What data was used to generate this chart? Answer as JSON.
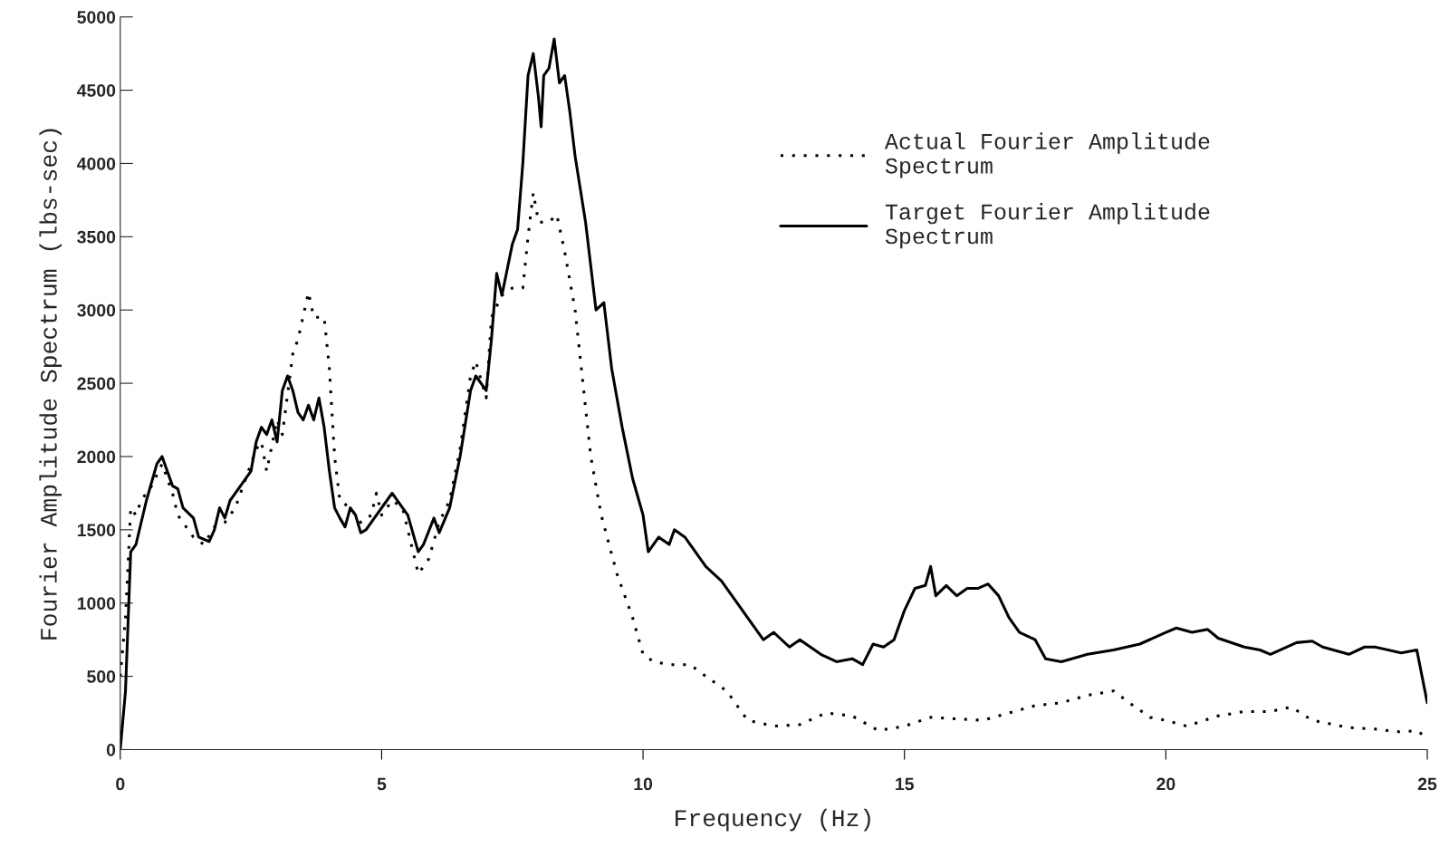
{
  "chart_data": {
    "type": "line",
    "xlabel": "Frequency (Hz)",
    "ylabel": "Fourier Amplitude Spectrum (lbs-sec)",
    "xlim": [
      0,
      25
    ],
    "xticks": [
      0,
      5,
      10,
      15,
      20,
      25
    ],
    "ylim": [
      0,
      5000
    ],
    "yticks": [
      0,
      500,
      1000,
      1500,
      2000,
      2500,
      3000,
      3500,
      4000,
      4500,
      5000
    ],
    "grid": false,
    "legend": "top right",
    "series": [
      {
        "name": "Actual Fourier Amplitude\nSpectrum",
        "color": "#000000",
        "line_style": "dotted",
        "x": [
          0,
          0.1,
          0.2,
          0.3,
          0.4,
          0.6,
          0.8,
          1.0,
          1.1,
          1.2,
          1.4,
          1.6,
          1.8,
          2.0,
          2.2,
          2.4,
          2.6,
          2.7,
          2.8,
          3.0,
          3.1,
          3.3,
          3.4,
          3.6,
          3.7,
          3.9,
          4.0,
          4.1,
          4.2,
          4.4,
          4.6,
          4.8,
          4.9,
          5.0,
          5.2,
          5.4,
          5.6,
          5.7,
          5.9,
          6.1,
          6.3,
          6.5,
          6.7,
          6.8,
          7.0,
          7.1,
          7.3,
          7.5,
          7.7,
          7.8,
          7.9,
          8.0,
          8.2,
          8.35,
          8.5,
          8.7,
          9.0,
          9.2,
          9.5,
          9.8,
          10.0,
          10.2,
          10.5,
          10.9,
          11.2,
          11.6,
          12.0,
          12.5,
          13.0,
          13.5,
          14.0,
          14.5,
          15.0,
          15.5,
          16.0,
          16.5,
          17.0,
          17.5,
          18.0,
          18.5,
          19.0,
          19.3,
          19.7,
          20.0,
          20.4,
          21.0,
          21.5,
          22.0,
          22.4,
          22.8,
          23.5,
          24.0,
          24.5,
          24.8,
          25.0
        ],
        "values": [
          500,
          900,
          1650,
          1600,
          1700,
          1800,
          1950,
          1750,
          1600,
          1550,
          1450,
          1400,
          1520,
          1550,
          1650,
          1850,
          2050,
          2100,
          1900,
          2250,
          2150,
          2700,
          2800,
          3120,
          2950,
          2950,
          2600,
          2000,
          1700,
          1650,
          1550,
          1600,
          1750,
          1600,
          1700,
          1650,
          1350,
          1200,
          1300,
          1550,
          1700,
          2050,
          2550,
          2650,
          2400,
          2950,
          3100,
          3150,
          3150,
          3500,
          3800,
          3600,
          3600,
          3650,
          3400,
          3000,
          2000,
          1600,
          1200,
          900,
          650,
          600,
          580,
          580,
          500,
          400,
          200,
          160,
          170,
          250,
          230,
          130,
          160,
          220,
          210,
          200,
          250,
          300,
          320,
          370,
          400,
          320,
          220,
          200,
          160,
          230,
          260,
          260,
          290,
          200,
          150,
          140,
          120,
          130,
          80
        ]
      },
      {
        "name": "Target Fourier Amplitude\nSpectrum",
        "color": "#000000",
        "line_style": "solid",
        "x": [
          0,
          0.1,
          0.2,
          0.3,
          0.5,
          0.7,
          0.8,
          0.9,
          1.0,
          1.1,
          1.2,
          1.4,
          1.5,
          1.7,
          1.8,
          1.9,
          2.0,
          2.1,
          2.3,
          2.5,
          2.6,
          2.7,
          2.8,
          2.9,
          3.0,
          3.1,
          3.2,
          3.3,
          3.4,
          3.5,
          3.6,
          3.7,
          3.8,
          3.9,
          4.0,
          4.1,
          4.2,
          4.3,
          4.4,
          4.5,
          4.6,
          4.7,
          4.9,
          5.1,
          5.2,
          5.4,
          5.5,
          5.7,
          5.8,
          6.0,
          6.1,
          6.3,
          6.5,
          6.7,
          6.8,
          7.0,
          7.1,
          7.2,
          7.3,
          7.5,
          7.6,
          7.7,
          7.8,
          7.9,
          8.0,
          8.05,
          8.1,
          8.2,
          8.3,
          8.4,
          8.5,
          8.6,
          8.7,
          8.9,
          9.0,
          9.1,
          9.25,
          9.4,
          9.6,
          9.8,
          10.0,
          10.1,
          10.3,
          10.5,
          10.6,
          10.8,
          11.0,
          11.2,
          11.5,
          11.8,
          12.0,
          12.3,
          12.5,
          12.8,
          13.0,
          13.4,
          13.7,
          14.0,
          14.2,
          14.4,
          14.6,
          14.8,
          15.0,
          15.2,
          15.4,
          15.5,
          15.6,
          15.8,
          16.0,
          16.2,
          16.4,
          16.6,
          16.8,
          17.0,
          17.2,
          17.5,
          17.7,
          18.0,
          18.2,
          18.5,
          19.0,
          19.5,
          20.0,
          20.2,
          20.5,
          20.8,
          21.0,
          21.5,
          21.8,
          22.0,
          22.5,
          22.8,
          23.0,
          23.5,
          23.8,
          24.0,
          24.5,
          24.8,
          25.0
        ],
        "values": [
          0,
          400,
          1350,
          1400,
          1700,
          1950,
          2000,
          1900,
          1800,
          1780,
          1650,
          1580,
          1450,
          1420,
          1500,
          1650,
          1580,
          1700,
          1800,
          1900,
          2100,
          2200,
          2150,
          2250,
          2100,
          2450,
          2550,
          2450,
          2300,
          2250,
          2350,
          2250,
          2400,
          2200,
          1900,
          1650,
          1580,
          1520,
          1650,
          1600,
          1480,
          1500,
          1600,
          1700,
          1750,
          1650,
          1600,
          1350,
          1400,
          1580,
          1480,
          1650,
          2000,
          2450,
          2550,
          2450,
          2800,
          3250,
          3100,
          3450,
          3550,
          4000,
          4600,
          4750,
          4450,
          4250,
          4600,
          4650,
          4850,
          4550,
          4600,
          4350,
          4050,
          3600,
          3300,
          3000,
          3050,
          2600,
          2200,
          1850,
          1600,
          1350,
          1450,
          1400,
          1500,
          1450,
          1350,
          1250,
          1150,
          1000,
          900,
          750,
          800,
          700,
          750,
          650,
          600,
          620,
          580,
          720,
          700,
          750,
          950,
          1100,
          1120,
          1250,
          1050,
          1120,
          1050,
          1100,
          1100,
          1130,
          1050,
          900,
          800,
          750,
          620,
          600,
          620,
          650,
          680,
          720,
          800,
          830,
          800,
          820,
          760,
          700,
          680,
          650,
          730,
          740,
          700,
          650,
          700,
          700,
          660,
          680,
          320
        ]
      }
    ]
  }
}
